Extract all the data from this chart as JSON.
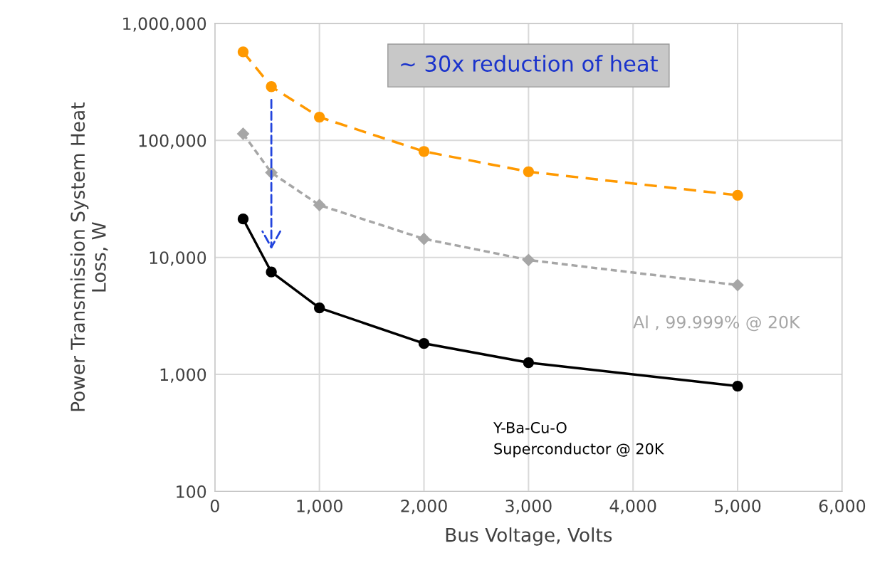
{
  "chart_data": {
    "type": "line",
    "xlabel": "Bus Voltage, Volts",
    "ylabel": "Power Transmission System Heat\nLoss, W",
    "log": "y",
    "grid": true,
    "legend": false,
    "x": [
      270,
      540,
      1000,
      2000,
      3000,
      5000
    ],
    "series": [
      {
        "color": "#ff9900",
        "marker": "circle",
        "line_style": "dashed",
        "values": [
          571000,
          288000,
          158000,
          80500,
          54000,
          34000
        ]
      },
      {
        "name": "Al , 99.999% @ 20K",
        "color": "#a6a6a6",
        "marker": "diamond",
        "line_style": "dotted",
        "values": [
          114000,
          53000,
          28000,
          14400,
          9500,
          5800
        ]
      },
      {
        "name": "Y-Ba-Cu-O\nSuperconductor @ 20K",
        "color": "#000000",
        "marker": "circle",
        "line_style": "solid",
        "values": [
          21300,
          7500,
          3700,
          1840,
          1260,
          794
        ]
      }
    ],
    "annotations": [
      "~ 30x reduction of heat"
    ],
    "xlim": [
      0,
      6000
    ],
    "xticks": [
      {
        "value": 0,
        "label": "0"
      },
      {
        "value": 1000,
        "label": "1,000"
      },
      {
        "value": 2000,
        "label": "2,000"
      },
      {
        "value": 3000,
        "label": "3,000"
      },
      {
        "value": 4000,
        "label": "4,000"
      },
      {
        "value": 5000,
        "label": "5,000"
      },
      {
        "value": 6000,
        "label": "6,000"
      }
    ],
    "ylim": [
      100,
      1000000
    ],
    "yticks": [
      {
        "value": 100,
        "label": "100"
      },
      {
        "value": 1000,
        "label": "1,000"
      },
      {
        "value": 10000,
        "label": "10,000"
      },
      {
        "value": 100000,
        "label": "100,000"
      },
      {
        "value": 1000000,
        "label": "1,000,000"
      }
    ]
  }
}
